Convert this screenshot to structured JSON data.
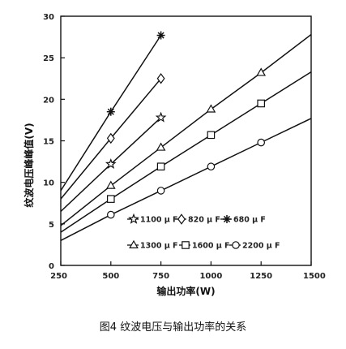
{
  "caption": "图4 纹波电压与输出功率的关系",
  "chart_data": {
    "type": "line",
    "xlabel": "输出功率(W)",
    "ylabel": "纹波电压峰峰值(V)",
    "xlim": [
      250,
      1500
    ],
    "ylim": [
      0,
      30
    ],
    "xticks": [
      250,
      500,
      750,
      1000,
      1250,
      1500
    ],
    "yticks": [
      0,
      5,
      10,
      15,
      20,
      25,
      30
    ],
    "grid": false,
    "legend_position": "inside-lower-right",
    "series": [
      {
        "name": "1100μF",
        "marker": "star",
        "x": [
          250,
          500,
          750
        ],
        "y": [
          6.5,
          12.2,
          17.8
        ]
      },
      {
        "name": "820μF",
        "marker": "diamond",
        "x": [
          250,
          500,
          750
        ],
        "y": [
          8.0,
          15.3,
          22.5
        ]
      },
      {
        "name": "680μF",
        "marker": "asterisk",
        "x": [
          250,
          500,
          750
        ],
        "y": [
          9.0,
          18.5,
          27.7
        ]
      },
      {
        "name": "1300μF",
        "marker": "triangle",
        "x": [
          250,
          500,
          750,
          1000,
          1250,
          1500
        ],
        "y": [
          4.8,
          9.6,
          14.2,
          18.8,
          23.2,
          27.8
        ]
      },
      {
        "name": "1600μF",
        "marker": "square",
        "x": [
          250,
          500,
          750,
          1000,
          1250,
          1500
        ],
        "y": [
          4.0,
          8.0,
          11.9,
          15.7,
          19.5,
          23.3
        ]
      },
      {
        "name": "2200μF",
        "marker": "circle",
        "x": [
          250,
          500,
          750,
          1000,
          1250,
          1500
        ],
        "y": [
          3.0,
          6.1,
          9.0,
          11.9,
          14.8,
          17.7
        ]
      }
    ],
    "legend_labels": [
      "1100 μ F",
      "820 μ F",
      "680 μ F",
      "1300 μ F",
      "1600 μ F",
      "2200 μ F"
    ]
  }
}
